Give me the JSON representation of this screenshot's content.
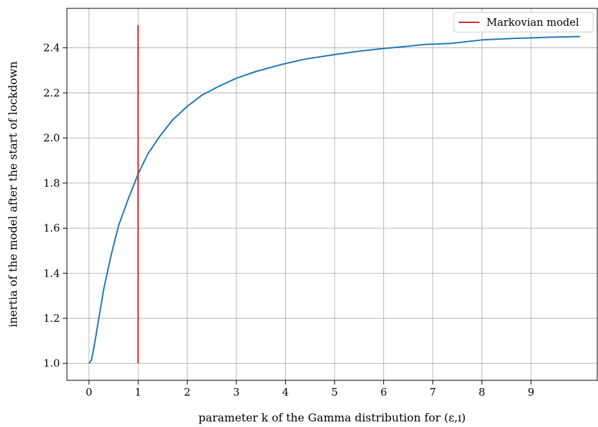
{
  "chart_data": {
    "type": "line",
    "xlabel": "parameter k of the Gamma distribution for (ε,ɪ)",
    "ylabel": "inertia of the model after the start of lockdown",
    "xlim": [
      -0.45,
      10.35
    ],
    "ylim": [
      0.925,
      2.575
    ],
    "xticks": [
      0,
      1,
      2,
      3,
      4,
      5,
      6,
      7,
      8,
      9
    ],
    "yticks": [
      1.0,
      1.2,
      1.4,
      1.6,
      1.8,
      2.0,
      2.2,
      2.4
    ],
    "ytick_labels": [
      "1.0",
      "1.2",
      "1.4",
      "1.6",
      "1.8",
      "2.0",
      "2.2",
      "2.4"
    ],
    "grid": true,
    "legend": {
      "placement": "top-right",
      "entries": [
        "Markovian model"
      ]
    },
    "series": [
      {
        "color": "#1f77b4",
        "x": [
          0.0,
          0.05,
          0.1,
          0.2,
          0.3,
          0.45,
          0.6,
          0.8,
          1.0,
          1.2,
          1.45,
          1.7,
          2.0,
          2.3,
          2.65,
          3.0,
          3.4,
          3.9,
          4.4,
          5.0,
          5.5,
          6.0,
          6.4,
          6.85,
          7.4,
          8.0,
          8.7,
          9.4,
          10.0
        ],
        "y": [
          1.0,
          1.015,
          1.07,
          1.2,
          1.33,
          1.48,
          1.61,
          1.73,
          1.84,
          1.93,
          2.01,
          2.08,
          2.14,
          2.19,
          2.23,
          2.265,
          2.295,
          2.325,
          2.35,
          2.37,
          2.385,
          2.397,
          2.405,
          2.415,
          2.42,
          2.435,
          2.442,
          2.447,
          2.45
        ]
      },
      {
        "name": "Markovian model",
        "color": "#d62728",
        "x": [
          1.0,
          1.0
        ],
        "y": [
          1.0,
          2.5
        ]
      }
    ]
  }
}
